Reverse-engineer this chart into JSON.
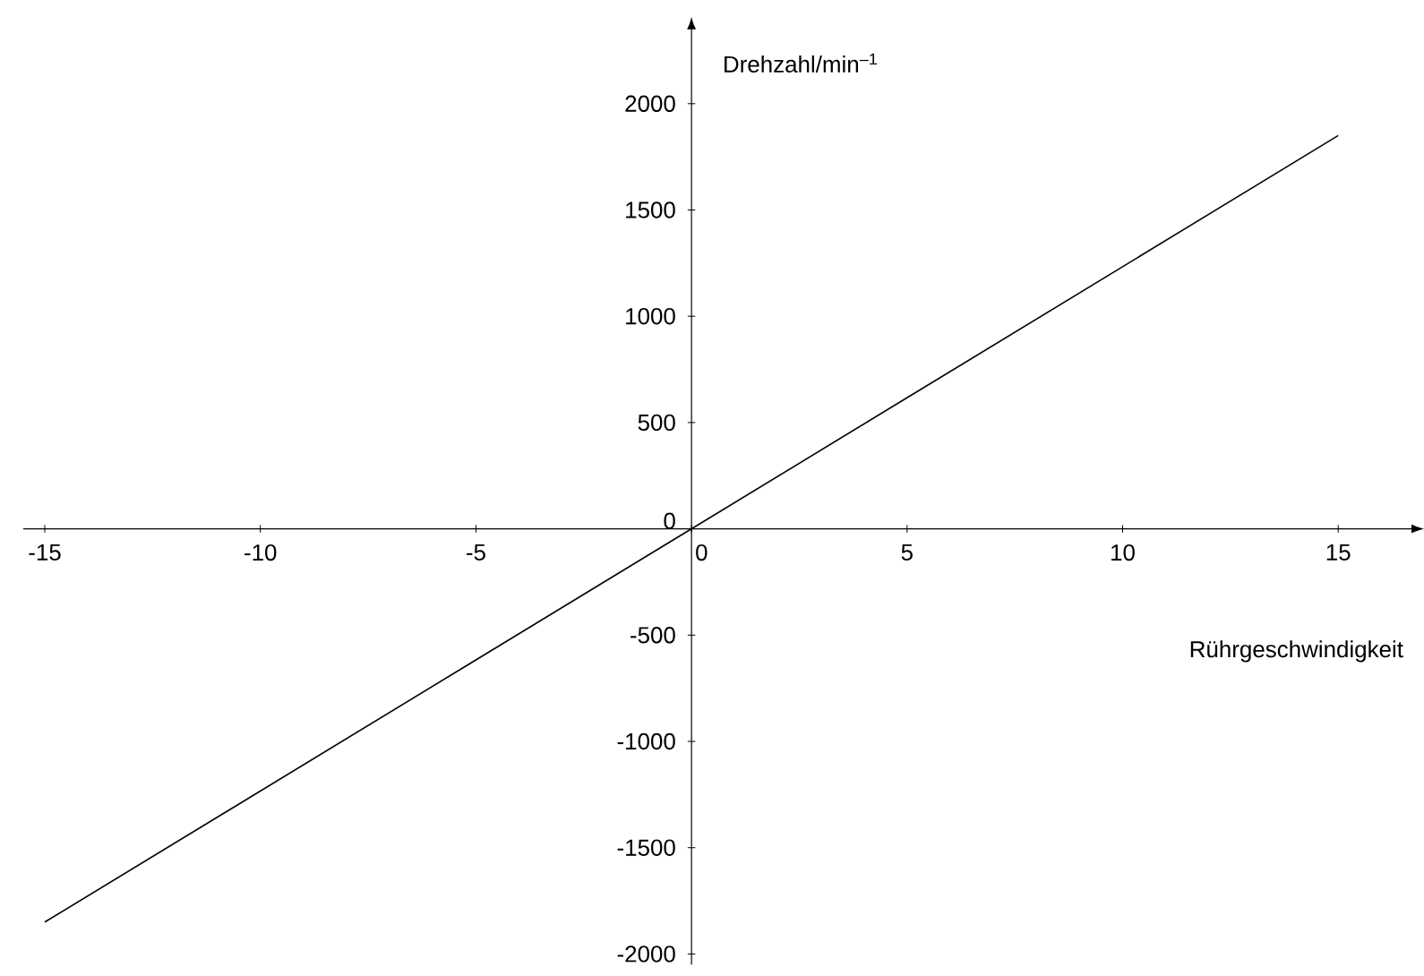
{
  "chart_data": {
    "type": "line",
    "xlabel": "Rührgeschwindigkeit",
    "ylabel": "Drehzahl/min$^{–1}$",
    "x": [
      -15,
      0,
      15
    ],
    "series": [
      {
        "color": "#000000",
        "values": [
          -1850,
          0,
          1850
        ]
      }
    ],
    "xlim": [
      -15.5,
      16.7
    ],
    "ylim": [
      -2050,
      2350
    ],
    "xticks": [
      -15,
      -10,
      -5,
      0,
      5,
      10,
      15
    ],
    "yticks": [
      -2000,
      -1500,
      -1000,
      -500,
      0,
      500,
      1000,
      1500,
      2000
    ],
    "grid": false,
    "marker": "none",
    "line_style": "solid"
  }
}
